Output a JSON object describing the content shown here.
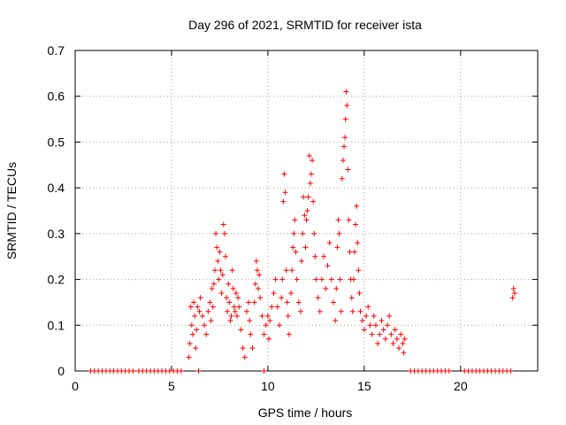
{
  "chart_data": {
    "type": "scatter",
    "title": "Day 296 of 2021, SRMTID for receiver ista",
    "xlabel": "GPS time / hours",
    "ylabel": "SRMTID / TECUs",
    "xlim": [
      0,
      24
    ],
    "ylim": [
      0,
      0.7
    ],
    "xticks": [
      0,
      5,
      10,
      15,
      20
    ],
    "xtick_labels": [
      "0",
      "5",
      "10",
      "15",
      "20"
    ],
    "yticks": [
      0,
      0.1,
      0.2,
      0.3,
      0.4,
      0.5,
      0.6,
      0.7
    ],
    "ytick_labels": [
      "0",
      "0.1",
      "0.2",
      "0.3",
      "0.4",
      "0.5",
      "0.6",
      "0.7"
    ],
    "grid": true,
    "marker": "+",
    "color": "#ff0000",
    "series": [
      {
        "name": "SRMTID",
        "points": [
          [
            0.8,
            0
          ],
          [
            1.0,
            0
          ],
          [
            1.2,
            0
          ],
          [
            1.4,
            0
          ],
          [
            1.6,
            0
          ],
          [
            1.8,
            0
          ],
          [
            2.0,
            0
          ],
          [
            2.2,
            0
          ],
          [
            2.4,
            0
          ],
          [
            2.6,
            0
          ],
          [
            2.8,
            0
          ],
          [
            3.0,
            0
          ],
          [
            3.3,
            0
          ],
          [
            3.5,
            0
          ],
          [
            3.7,
            0
          ],
          [
            3.9,
            0
          ],
          [
            4.1,
            0
          ],
          [
            4.3,
            0
          ],
          [
            4.5,
            0
          ],
          [
            4.7,
            0
          ],
          [
            4.9,
            0
          ],
          [
            5.1,
            0
          ],
          [
            5.3,
            0
          ],
          [
            5.5,
            0
          ],
          [
            6.4,
            0
          ],
          [
            9.8,
            0
          ],
          [
            17.4,
            0
          ],
          [
            17.6,
            0
          ],
          [
            17.8,
            0
          ],
          [
            18.0,
            0
          ],
          [
            18.2,
            0
          ],
          [
            18.4,
            0
          ],
          [
            18.6,
            0
          ],
          [
            18.8,
            0
          ],
          [
            19.0,
            0
          ],
          [
            19.2,
            0
          ],
          [
            19.4,
            0
          ],
          [
            20.2,
            0
          ],
          [
            20.4,
            0
          ],
          [
            20.6,
            0
          ],
          [
            20.8,
            0
          ],
          [
            21.0,
            0
          ],
          [
            21.2,
            0
          ],
          [
            21.4,
            0
          ],
          [
            21.6,
            0
          ],
          [
            21.8,
            0
          ],
          [
            22.0,
            0
          ],
          [
            22.2,
            0
          ],
          [
            22.4,
            0
          ],
          [
            22.6,
            0
          ],
          [
            5.9,
            0.03
          ],
          [
            5.95,
            0.06
          ],
          [
            6.0,
            0.14
          ],
          [
            6.05,
            0.1
          ],
          [
            6.1,
            0.08
          ],
          [
            6.15,
            0.15
          ],
          [
            6.2,
            0.12
          ],
          [
            6.25,
            0.05
          ],
          [
            6.3,
            0.09
          ],
          [
            6.35,
            0.14
          ],
          [
            6.45,
            0.13
          ],
          [
            6.5,
            0.16
          ],
          [
            6.6,
            0.12
          ],
          [
            6.7,
            0.1
          ],
          [
            6.8,
            0.08
          ],
          [
            6.9,
            0.13
          ],
          [
            7.0,
            0.15
          ],
          [
            7.05,
            0.11
          ],
          [
            7.1,
            0.18
          ],
          [
            7.15,
            0.14
          ],
          [
            7.2,
            0.19
          ],
          [
            7.25,
            0.22
          ],
          [
            7.3,
            0.3
          ],
          [
            7.35,
            0.27
          ],
          [
            7.4,
            0.24
          ],
          [
            7.45,
            0.2
          ],
          [
            7.5,
            0.26
          ],
          [
            7.55,
            0.22
          ],
          [
            7.6,
            0.17
          ],
          [
            7.65,
            0.21
          ],
          [
            7.7,
            0.32
          ],
          [
            7.75,
            0.3
          ],
          [
            7.8,
            0.25
          ],
          [
            7.85,
            0.16
          ],
          [
            7.9,
            0.13
          ],
          [
            7.95,
            0.19
          ],
          [
            8.0,
            0.15
          ],
          [
            8.05,
            0.11
          ],
          [
            8.1,
            0.12
          ],
          [
            8.15,
            0.22
          ],
          [
            8.2,
            0.18
          ],
          [
            8.25,
            0.14
          ],
          [
            8.3,
            0.13
          ],
          [
            8.35,
            0.17
          ],
          [
            8.4,
            0.12
          ],
          [
            8.45,
            0.16
          ],
          [
            8.5,
            0.14
          ],
          [
            8.6,
            0.09
          ],
          [
            8.7,
            0.05
          ],
          [
            8.8,
            0.03
          ],
          [
            8.9,
            0.13
          ],
          [
            9.0,
            0.15
          ],
          [
            9.05,
            0.11
          ],
          [
            9.1,
            0.08
          ],
          [
            9.2,
            0.05
          ],
          [
            9.3,
            0.15
          ],
          [
            9.35,
            0.19
          ],
          [
            9.4,
            0.24
          ],
          [
            9.45,
            0.22
          ],
          [
            9.5,
            0.18
          ],
          [
            9.55,
            0.21
          ],
          [
            9.6,
            0.16
          ],
          [
            9.7,
            0.12
          ],
          [
            9.8,
            0.08
          ],
          [
            9.9,
            0.1
          ],
          [
            10.0,
            0.12
          ],
          [
            10.05,
            0.07
          ],
          [
            10.1,
            0.11
          ],
          [
            10.2,
            0.14
          ],
          [
            10.3,
            0.17
          ],
          [
            10.4,
            0.2
          ],
          [
            10.5,
            0.14
          ],
          [
            10.6,
            0.1
          ],
          [
            10.7,
            0.16
          ],
          [
            10.75,
            0.2
          ],
          [
            10.8,
            0.37
          ],
          [
            10.85,
            0.43
          ],
          [
            10.9,
            0.39
          ],
          [
            10.95,
            0.22
          ],
          [
            11.0,
            0.15
          ],
          [
            11.05,
            0.12
          ],
          [
            11.1,
            0.08
          ],
          [
            11.2,
            0.17
          ],
          [
            11.25,
            0.22
          ],
          [
            11.3,
            0.27
          ],
          [
            11.35,
            0.3
          ],
          [
            11.4,
            0.33
          ],
          [
            11.45,
            0.26
          ],
          [
            11.5,
            0.2
          ],
          [
            11.6,
            0.15
          ],
          [
            11.7,
            0.13
          ],
          [
            11.75,
            0.24
          ],
          [
            11.8,
            0.3
          ],
          [
            11.85,
            0.38
          ],
          [
            11.9,
            0.34
          ],
          [
            11.95,
            0.27
          ],
          [
            12.0,
            0.33
          ],
          [
            12.05,
            0.35
          ],
          [
            12.1,
            0.38
          ],
          [
            12.15,
            0.47
          ],
          [
            12.2,
            0.41
          ],
          [
            12.25,
            0.43
          ],
          [
            12.3,
            0.46
          ],
          [
            12.35,
            0.37
          ],
          [
            12.4,
            0.3
          ],
          [
            12.45,
            0.25
          ],
          [
            12.5,
            0.2
          ],
          [
            12.6,
            0.16
          ],
          [
            12.7,
            0.13
          ],
          [
            12.8,
            0.2
          ],
          [
            12.9,
            0.25
          ],
          [
            13.0,
            0.18
          ],
          [
            13.1,
            0.23
          ],
          [
            13.2,
            0.28
          ],
          [
            13.3,
            0.2
          ],
          [
            13.4,
            0.15
          ],
          [
            13.5,
            0.11
          ],
          [
            13.55,
            0.18
          ],
          [
            13.6,
            0.27
          ],
          [
            13.65,
            0.33
          ],
          [
            13.7,
            0.3
          ],
          [
            13.75,
            0.2
          ],
          [
            13.8,
            0.13
          ],
          [
            13.85,
            0.42
          ],
          [
            13.9,
            0.46
          ],
          [
            13.95,
            0.49
          ],
          [
            14.0,
            0.51
          ],
          [
            14.03,
            0.55
          ],
          [
            14.06,
            0.61
          ],
          [
            14.1,
            0.58
          ],
          [
            14.15,
            0.44
          ],
          [
            14.2,
            0.33
          ],
          [
            14.25,
            0.26
          ],
          [
            14.3,
            0.2
          ],
          [
            14.35,
            0.16
          ],
          [
            14.4,
            0.13
          ],
          [
            14.45,
            0.2
          ],
          [
            14.5,
            0.26
          ],
          [
            14.55,
            0.32
          ],
          [
            14.6,
            0.36
          ],
          [
            14.65,
            0.28
          ],
          [
            14.7,
            0.22
          ],
          [
            14.75,
            0.17
          ],
          [
            14.8,
            0.13
          ],
          [
            14.9,
            0.11
          ],
          [
            15.0,
            0.09
          ],
          [
            15.1,
            0.12
          ],
          [
            15.2,
            0.14
          ],
          [
            15.3,
            0.1
          ],
          [
            15.4,
            0.08
          ],
          [
            15.5,
            0.12
          ],
          [
            15.6,
            0.1
          ],
          [
            15.7,
            0.06
          ],
          [
            15.8,
            0.08
          ],
          [
            15.9,
            0.11
          ],
          [
            16.0,
            0.09
          ],
          [
            16.1,
            0.07
          ],
          [
            16.2,
            0.1
          ],
          [
            16.3,
            0.12
          ],
          [
            16.4,
            0.08
          ],
          [
            16.5,
            0.06
          ],
          [
            16.6,
            0.09
          ],
          [
            16.7,
            0.07
          ],
          [
            16.8,
            0.05
          ],
          [
            16.9,
            0.08
          ],
          [
            17.0,
            0.06
          ],
          [
            17.05,
            0.04
          ],
          [
            17.1,
            0.07
          ],
          [
            22.7,
            0.16
          ],
          [
            22.75,
            0.18
          ],
          [
            22.8,
            0.17
          ]
        ]
      }
    ]
  }
}
